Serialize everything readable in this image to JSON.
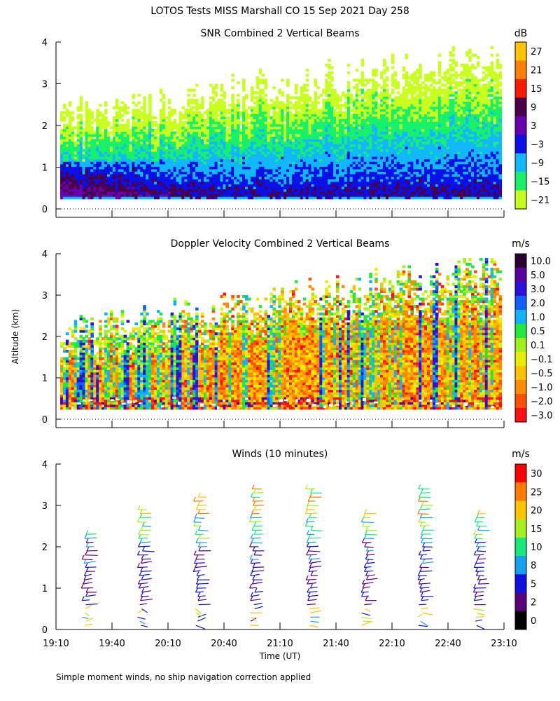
{
  "figure_title": "LOTOS Tests MISS Marshall CO  15 Sep 2021 Day 258",
  "y_axis_label": "Altitude (km)",
  "x_axis_label": "Time (UT)",
  "footnote": "Simple moment winds, no ship navigation correction applied",
  "x_ticks": [
    "19:10",
    "19:40",
    "20:10",
    "20:40",
    "21:10",
    "21:40",
    "22:10",
    "22:40",
    "23:10"
  ],
  "y_ticks": [
    "0",
    "1",
    "2",
    "3",
    "4"
  ],
  "chart_data": [
    {
      "type": "heatmap",
      "title": "SNR Combined 2 Vertical Beams",
      "unit": "dB",
      "xlim_minutes_after_1910": [
        0,
        240
      ],
      "ylim_km": [
        0,
        4
      ],
      "colorbar": {
        "labels": [
          "27",
          "21",
          "15",
          "9",
          "3",
          "−3",
          "−9",
          "−15",
          "−21"
        ],
        "values": [
          27,
          21,
          15,
          9,
          3,
          -3,
          -9,
          -15,
          -21
        ],
        "colors": [
          "#ffc300",
          "#ff7f00",
          "#ff1a00",
          "#4a0048",
          "#6a00b0",
          "#0a10e6",
          "#12b8ff",
          "#19f06a",
          "#c8ff21"
        ]
      },
      "description_fields": {
        "low_levels": "high SNR near surface, decreasing with altitude",
        "echo_top_trend_km": [
          2.3,
          3.9
        ]
      }
    },
    {
      "type": "heatmap",
      "title": "Doppler Velocity Combined 2 Vertical Beams",
      "unit": "m/s",
      "xlim_minutes_after_1910": [
        0,
        240
      ],
      "ylim_km": [
        0,
        4
      ],
      "colorbar": {
        "labels": [
          "10.0",
          "5.0",
          "3.0",
          "2.0",
          "1.0",
          "0.5",
          "0.1",
          "−0.1",
          "−0.5",
          "−1.0",
          "−2.0",
          "−3.0"
        ],
        "values": [
          10.0,
          5.0,
          3.0,
          2.0,
          1.0,
          0.5,
          0.1,
          -0.1,
          -0.5,
          -1.0,
          -2.0,
          -3.0
        ],
        "colors": [
          "#2a0030",
          "#5a00a0",
          "#2a10d8",
          "#1060ff",
          "#13b0ff",
          "#22e83c",
          "#a0f020",
          "#e6f000",
          "#ffc000",
          "#ff8c00",
          "#ff5000",
          "#ff1010"
        ]
      }
    },
    {
      "type": "wind_barbs",
      "title": "Winds (10 minutes)",
      "unit": "m/s",
      "xlim_minutes_after_1910": [
        0,
        240
      ],
      "ylim_km": [
        0,
        4
      ],
      "profile_times": [
        "19:25",
        "19:55",
        "20:25",
        "20:55",
        "21:25",
        "21:55",
        "22:25",
        "22:55"
      ],
      "colorbar": {
        "labels": [
          "30",
          "25",
          "20",
          "15",
          "10",
          "8",
          "5",
          "2",
          "0"
        ],
        "values": [
          30,
          25,
          20,
          15,
          10,
          8,
          5,
          2,
          0
        ],
        "colors": [
          "#ff0000",
          "#ff7a00",
          "#ffc300",
          "#a6f01e",
          "#19e87c",
          "#17a0f0",
          "#1010e0",
          "#5a007a",
          "#000000"
        ]
      }
    }
  ]
}
